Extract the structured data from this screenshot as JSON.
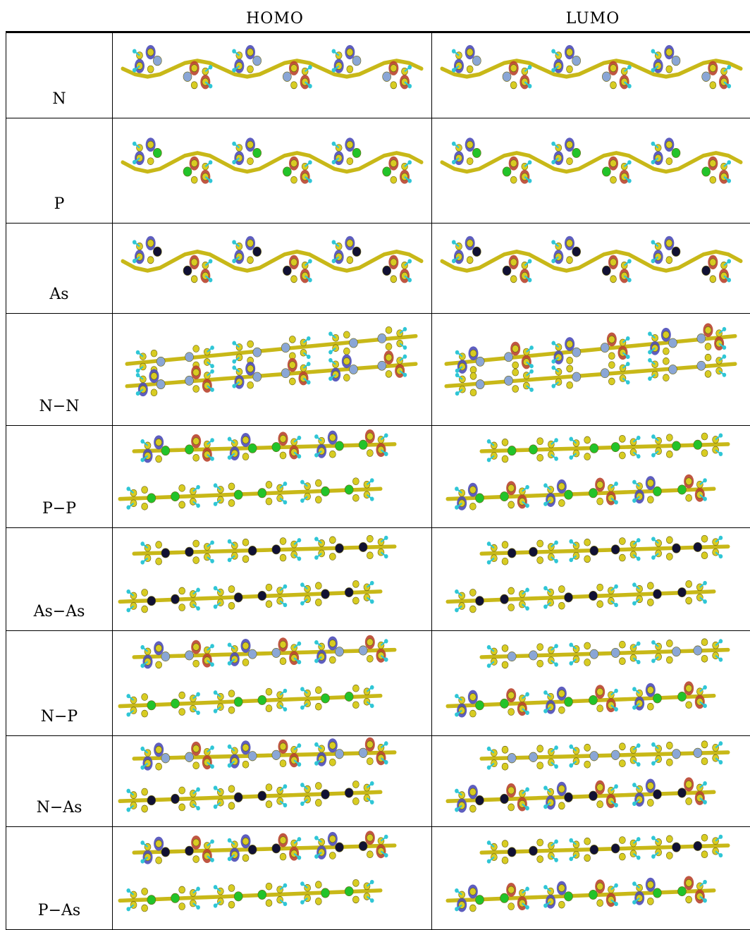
{
  "columns": {
    "homo": "HOMO",
    "lumo": "LUMO"
  },
  "rows": [
    {
      "label": "N",
      "homo": {
        "kind": "single",
        "el": "N",
        "orb": "heavy"
      },
      "lumo": {
        "kind": "single",
        "el": "N",
        "orb": "heavy"
      }
    },
    {
      "label": "P",
      "homo": {
        "kind": "single",
        "el": "P",
        "orb": "med"
      },
      "lumo": {
        "kind": "single",
        "el": "P",
        "orb": "light"
      }
    },
    {
      "label": "As",
      "homo": {
        "kind": "single",
        "el": "As",
        "orb": "med"
      },
      "lumo": {
        "kind": "single",
        "el": "As",
        "orb": "light"
      }
    },
    {
      "label": "N−N",
      "homo": {
        "kind": "loop",
        "el1": "N",
        "el2": "N",
        "orb": "bottom"
      },
      "lumo": {
        "kind": "loop",
        "el1": "N",
        "el2": "N",
        "orb": "top"
      }
    },
    {
      "label": "P−P",
      "homo": {
        "kind": "pair",
        "el1": "P",
        "el2": "P",
        "orb": "top"
      },
      "lumo": {
        "kind": "pair",
        "el1": "P",
        "el2": "P",
        "orb": "bottom"
      }
    },
    {
      "label": "As−As",
      "homo": {
        "kind": "pair",
        "el1": "As",
        "el2": "As",
        "orb": "none"
      },
      "lumo": {
        "kind": "pair",
        "el1": "As",
        "el2": "As",
        "orb": "none"
      }
    },
    {
      "label": "N−P",
      "homo": {
        "kind": "pair",
        "el1": "N",
        "el2": "P",
        "orb": "top"
      },
      "lumo": {
        "kind": "pair",
        "el1": "N",
        "el2": "P",
        "orb": "bottom"
      }
    },
    {
      "label": "N−As",
      "homo": {
        "kind": "pair",
        "el1": "N",
        "el2": "As",
        "orb": "top"
      },
      "lumo": {
        "kind": "pair",
        "el1": "N",
        "el2": "As",
        "orb": "bottom"
      }
    },
    {
      "label": "P−As",
      "homo": {
        "kind": "pair",
        "el1": "As",
        "el2": "P",
        "orb": "top"
      },
      "lumo": {
        "kind": "pair",
        "el1": "As",
        "el2": "P",
        "orb": "bottom"
      }
    }
  ],
  "colors": {
    "carbon": "#d8cc22",
    "hydrogen": "#2fc6d6",
    "N": "#8aa6d6",
    "P": "#22c32a",
    "As": "#111133",
    "orbital_pos": "#b9442e",
    "orbital_neg": "#4c4cb8",
    "bond": "#c8b818"
  }
}
